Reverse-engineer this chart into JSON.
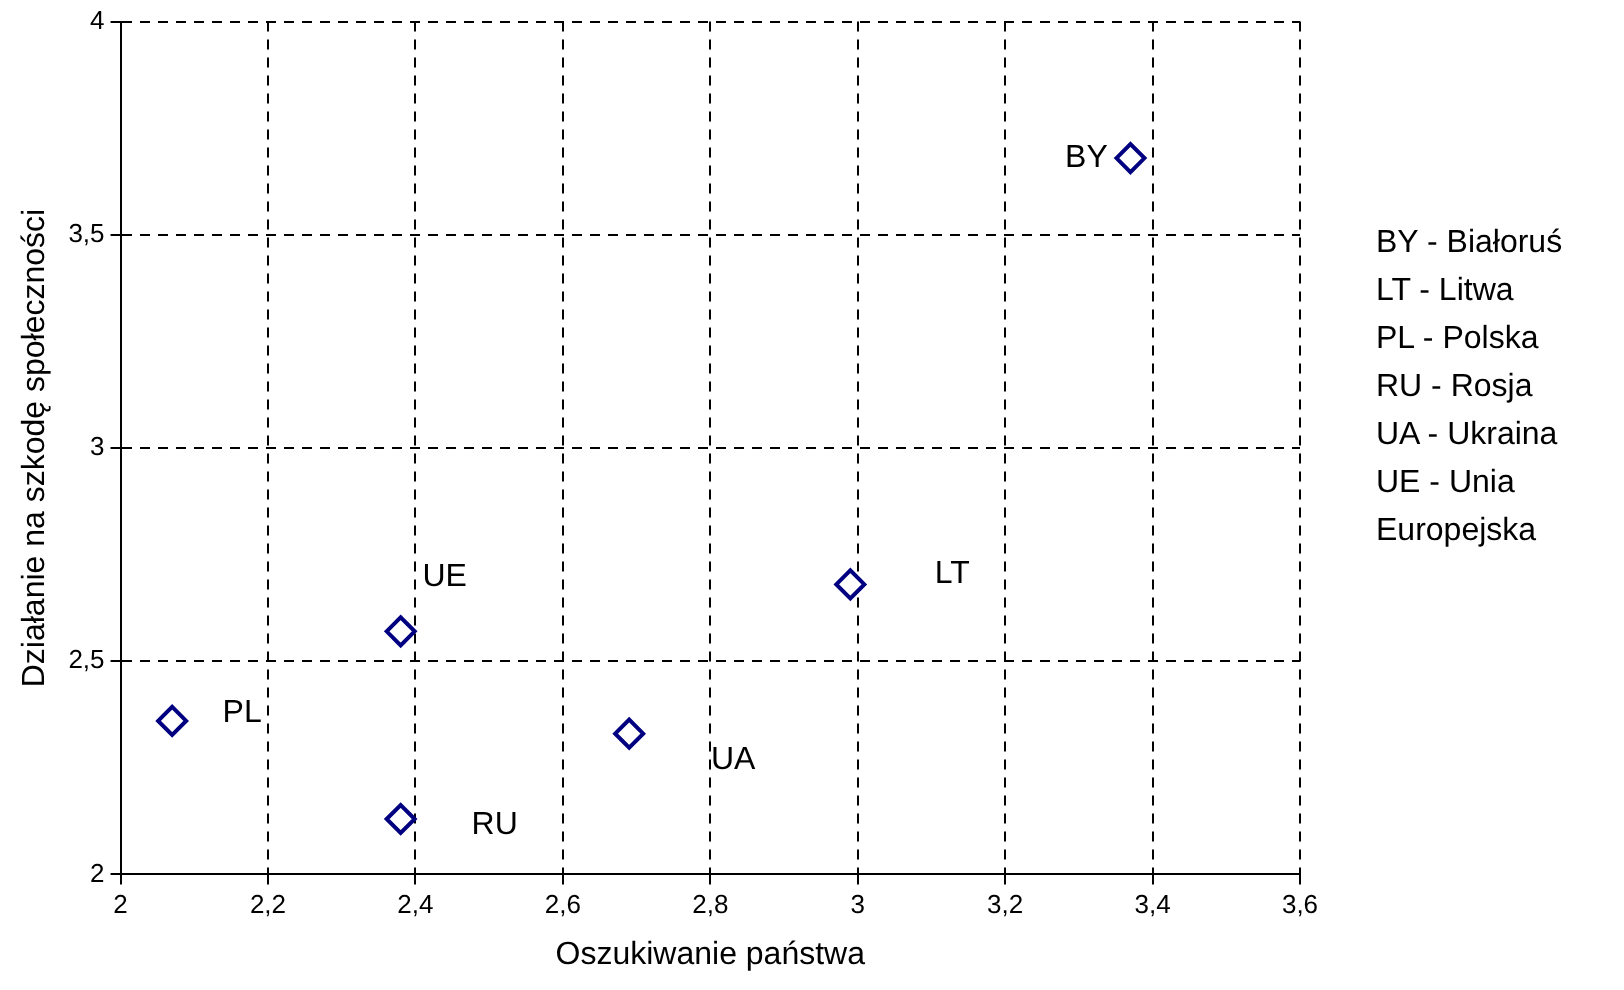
{
  "chart_data": {
    "type": "scatter",
    "xlabel": "Oszukiwanie państwa",
    "ylabel": "Działanie na szkodę społeczności",
    "x": [
      3.37,
      2.99,
      2.07,
      2.38,
      2.69,
      2.38
    ],
    "series": [
      {
        "color": "#000080",
        "values": [
          3.68,
          2.68,
          2.36,
          2.13,
          2.33,
          2.57
        ]
      }
    ],
    "xlim": [
      2,
      3.6
    ],
    "xticks": [
      2,
      {
        "value": 2.2,
        "label": "2,2"
      },
      {
        "value": 2.4,
        "label": "2,4"
      },
      {
        "value": 2.6,
        "label": "2,6"
      },
      {
        "value": 2.8,
        "label": "2,8"
      },
      3,
      {
        "value": 3.2,
        "label": "3,2"
      },
      {
        "value": 3.4,
        "label": "3,4"
      },
      {
        "value": 3.6,
        "label": "3,6"
      }
    ],
    "ylim": [
      2,
      4
    ],
    "yticks": [
      2,
      {
        "value": 2.5,
        "label": "2,5"
      },
      3,
      {
        "value": 3.5,
        "label": "3,5"
      },
      4
    ],
    "grid": true,
    "legend": false,
    "marker": "diamond",
    "annotations": [
      {
        "text": "BY",
        "x": 3.37,
        "y": 3.68
      },
      {
        "text": "LT",
        "x": 2.99,
        "y": 2.68
      },
      {
        "text": "PL",
        "x": 2.07,
        "y": 2.36
      },
      {
        "text": "RU",
        "x": 2.38,
        "y": 2.13
      },
      {
        "text": "UA",
        "x": 2.69,
        "y": 2.33
      },
      {
        "text": "UE",
        "x": 2.38,
        "y": 2.57
      },
      "BY - Białoruś",
      "LT - Litwa",
      "PL - Polska",
      "RU - Rosja",
      "UA - Ukraina",
      "UE - Unia Europejska"
    ]
  }
}
